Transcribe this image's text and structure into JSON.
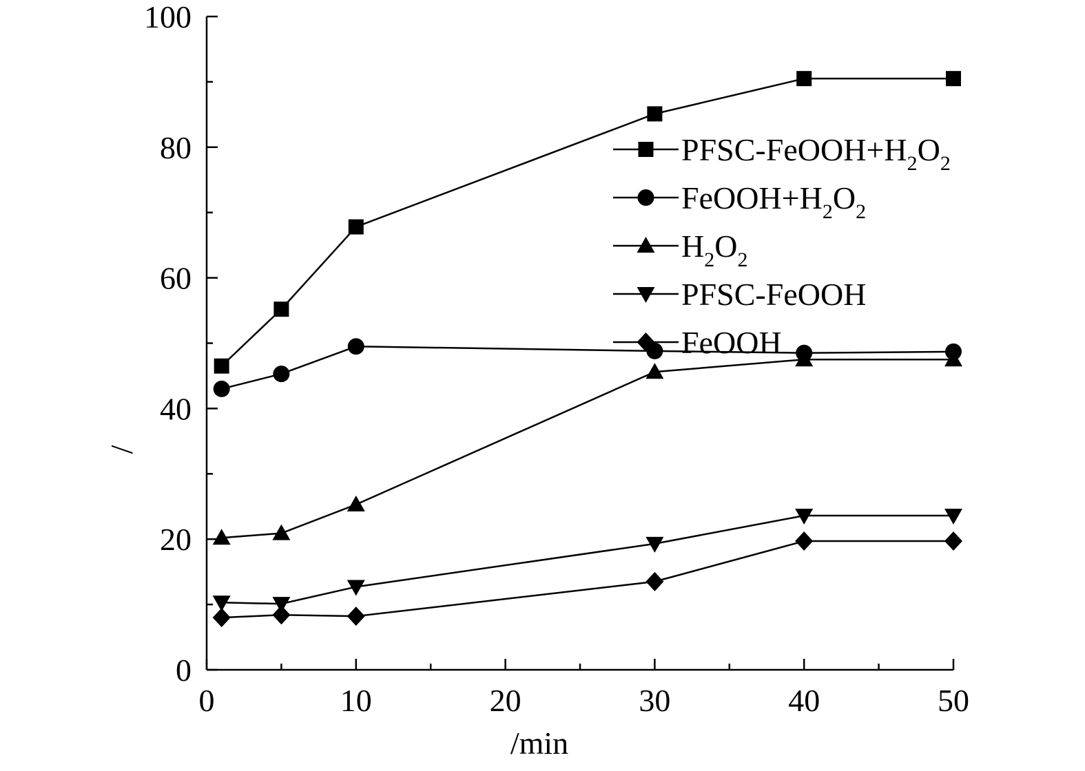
{
  "chart_data": {
    "type": "line",
    "xlabel": "/min",
    "ylabel": "/",
    "xlim": [
      0,
      50
    ],
    "ylim": [
      0,
      100
    ],
    "xticks": [
      0,
      10,
      20,
      30,
      40,
      50
    ],
    "yticks": [
      0,
      20,
      40,
      60,
      80,
      100
    ],
    "grid": false,
    "legend_position": "top-right",
    "series": [
      {
        "name": "PFSC-FeOOH+H2O2",
        "label_parts": [
          [
            "PFSC-FeOOH+H",
            false
          ],
          [
            "2",
            true
          ],
          [
            "O",
            false
          ],
          [
            "2",
            true
          ]
        ],
        "marker": "square",
        "x": [
          1,
          5,
          10,
          30,
          40,
          50
        ],
        "y": [
          46.5,
          55.2,
          67.8,
          85.1,
          90.5,
          90.5
        ]
      },
      {
        "name": "FeOOH+H2O2",
        "label_parts": [
          [
            "FeOOH+H",
            false
          ],
          [
            "2",
            true
          ],
          [
            "O",
            false
          ],
          [
            "2",
            true
          ]
        ],
        "marker": "circle",
        "x": [
          1,
          5,
          10,
          30,
          40,
          50
        ],
        "y": [
          43.0,
          45.3,
          49.5,
          48.8,
          48.5,
          48.7
        ]
      },
      {
        "name": "H2O2",
        "label_parts": [
          [
            "H",
            false
          ],
          [
            "2",
            true
          ],
          [
            "O",
            false
          ],
          [
            "2",
            true
          ]
        ],
        "marker": "triangle-up",
        "x": [
          1,
          5,
          10,
          30,
          40,
          50
        ],
        "y": [
          20.2,
          20.9,
          25.3,
          45.6,
          47.5,
          47.5
        ]
      },
      {
        "name": "PFSC-FeOOH",
        "label_parts": [
          [
            "PFSC-FeOOH",
            false
          ]
        ],
        "marker": "triangle-down",
        "x": [
          1,
          5,
          10,
          30,
          40,
          50
        ],
        "y": [
          10.3,
          10.1,
          12.7,
          19.3,
          23.6,
          23.6
        ]
      },
      {
        "name": "FeOOH",
        "label_parts": [
          [
            "FeOOH",
            false
          ]
        ],
        "marker": "diamond",
        "x": [
          1,
          5,
          10,
          30,
          40,
          50
        ],
        "y": [
          8.0,
          8.4,
          8.2,
          13.5,
          19.7,
          19.7
        ]
      }
    ]
  }
}
